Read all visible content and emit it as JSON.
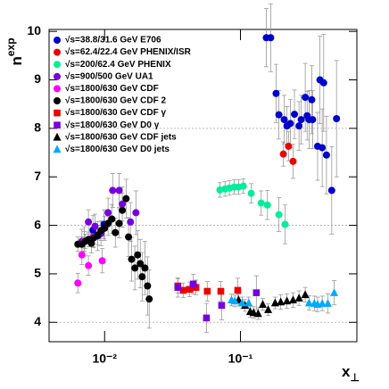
{
  "chart_data": {
    "type": "scatter",
    "xlabel": "x",
    "xlabel_subscript": "⊥",
    "ylabel": "n",
    "ylabel_superscript": "exp",
    "xscale": "log",
    "xlim": [
      0.0039,
      0.72
    ],
    "ylim": [
      3.6,
      10.04
    ],
    "xticks": [
      {
        "value": 0.01,
        "label": "10⁻²"
      },
      {
        "value": 0.1,
        "label": "10⁻¹"
      }
    ],
    "yticks": [
      4,
      5,
      6,
      7,
      8,
      9,
      10
    ],
    "hlines": [
      4,
      6,
      8
    ],
    "legend": "upper left",
    "series": [
      {
        "name": "√s=38.8/31.6 GeV E706",
        "color": "#0000cc",
        "marker": "circle",
        "x": [
          0.155,
          0.167,
          0.183,
          0.192,
          0.21,
          0.22,
          0.233,
          0.25,
          0.27,
          0.28,
          0.3,
          0.31,
          0.32,
          0.335,
          0.34,
          0.37,
          0.385,
          0.4,
          0.41,
          0.43,
          0.47,
          0.51,
          0.0071,
          0.0082,
          0.0089,
          0.0099
        ],
        "values": [
          9.87,
          9.87,
          8.72,
          8.28,
          8.18,
          8.05,
          8.1,
          8.29,
          8.05,
          8.18,
          8.64,
          8.26,
          8.18,
          8.59,
          8.18,
          7.63,
          9.0,
          7.6,
          8.94,
          7.45,
          6.72,
          8.2,
          5.67,
          5.9,
          5.78,
          6.02
        ],
        "errors": [
          0.6,
          0.7,
          0.6,
          0.5,
          0.5,
          0.4,
          0.5,
          0.5,
          0.5,
          0.5,
          0.7,
          0.5,
          0.6,
          0.7,
          0.6,
          0.7,
          0.9,
          0.8,
          1.0,
          0.8,
          0.9,
          1.2,
          0.3,
          0.3,
          0.3,
          0.3
        ]
      },
      {
        "name": "√s=62.4/22.4 GeV PHENIX/ISR",
        "color": "#ee0000",
        "marker": "circle",
        "x": [
          0.207,
          0.226,
          0.244
        ],
        "values": [
          7.47,
          7.63,
          7.32
        ],
        "errors": [
          0.25,
          0.3,
          0.35
        ]
      },
      {
        "name": "√s=200/62.4 GeV PHENIX",
        "color": "#00ee99",
        "marker": "circle",
        "x": [
          0.0706,
          0.077,
          0.083,
          0.09,
          0.097,
          0.105,
          0.12,
          0.142,
          0.158,
          0.192,
          0.213
        ],
        "values": [
          6.73,
          6.75,
          6.77,
          6.79,
          6.79,
          6.81,
          6.66,
          6.46,
          6.42,
          6.22,
          6.02
        ],
        "errors": [
          0.15,
          0.15,
          0.15,
          0.15,
          0.15,
          0.15,
          0.2,
          0.25,
          0.3,
          0.35,
          0.4
        ]
      },
      {
        "name": "√s=900/500 GeV UA1",
        "color": "#7700dd",
        "marker": "circle",
        "x": [
          0.0068,
          0.0076,
          0.0085,
          0.0094,
          0.0106,
          0.01146,
          0.0128,
          0.0135,
          0.0155,
          0.017
        ],
        "values": [
          5.67,
          6.07,
          5.98,
          5.83,
          6.26,
          6.72,
          6.72,
          6.44,
          6.07,
          6.26
        ],
        "errors": [
          0.25,
          0.25,
          0.25,
          0.25,
          0.3,
          0.35,
          0.35,
          0.35,
          0.4,
          0.45
        ]
      },
      {
        "name": "√s=1800/630 GeV CDF",
        "color": "#ff00ff",
        "marker": "circle",
        "x": [
          0.00635,
          0.0068,
          0.0071,
          0.0076,
          0.0082,
          0.0096
        ],
        "values": [
          4.81,
          5.39,
          5.67,
          5.17,
          5.76,
          5.27
        ],
        "errors": [
          0.2,
          0.2,
          0.2,
          0.2,
          0.2,
          0.25
        ]
      },
      {
        "name": "√s=1800/630 GeV CDF 2",
        "color": "#000000",
        "marker": "circle",
        "x": [
          0.00635,
          0.0068,
          0.0072,
          0.0076,
          0.008,
          0.0083,
          0.0089,
          0.0094,
          0.01,
          0.0106,
          0.0113,
          0.012,
          0.0128,
          0.0135,
          0.0144,
          0.015,
          0.0158,
          0.0167,
          0.0175,
          0.0183,
          0.0189,
          0.0198,
          0.0207,
          0.0213
        ],
        "values": [
          5.61,
          5.61,
          5.67,
          5.71,
          5.63,
          5.74,
          5.8,
          5.89,
          5.94,
          6.04,
          6.13,
          5.85,
          6.04,
          6.31,
          6.55,
          5.76,
          5.3,
          5.12,
          5.39,
          5.21,
          4.94,
          5.12,
          4.75,
          4.48
        ],
        "errors": [
          0.15,
          0.15,
          0.15,
          0.15,
          0.2,
          0.2,
          0.2,
          0.2,
          0.25,
          0.25,
          0.3,
          0.3,
          0.3,
          0.35,
          0.4,
          0.4,
          0.45,
          0.45,
          0.5,
          0.5,
          0.5,
          0.55,
          0.6,
          0.6
        ]
      },
      {
        "name": "√s=1800/630 GeV CDF γ",
        "color": "#ee0000",
        "marker": "square",
        "x": [
          0.0346,
          0.0379,
          0.0422,
          0.047,
          0.057,
          0.0717,
          0.0955
        ],
        "values": [
          4.75,
          4.66,
          4.68,
          4.72,
          4.64,
          4.64,
          4.66
        ],
        "errors": [
          0.15,
          0.15,
          0.15,
          0.15,
          0.2,
          0.2,
          0.25
        ]
      },
      {
        "name": "√s=1800/630 GeV D0 γ",
        "color": "#7700dd",
        "marker": "square",
        "x": [
          0.0346,
          0.045,
          0.0562,
          0.0727,
          0.131
        ],
        "values": [
          4.72,
          4.79,
          4.09,
          4.35,
          4.61
        ],
        "errors": [
          0.2,
          0.2,
          0.3,
          0.3,
          0.35
        ]
      },
      {
        "name": "√s=1800/630 GeV CDF jets",
        "color": "#000000",
        "marker": "triangle",
        "x": [
          0.097,
          0.108,
          0.118,
          0.125,
          0.135,
          0.146,
          0.16,
          0.18,
          0.198,
          0.22,
          0.244,
          0.27,
          0.3
        ],
        "values": [
          4.46,
          4.35,
          4.22,
          4.2,
          4.18,
          4.37,
          4.26,
          4.4,
          4.42,
          4.44,
          4.46,
          4.5,
          4.57
        ],
        "errors": [
          0.12,
          0.12,
          0.12,
          0.12,
          0.12,
          0.12,
          0.12,
          0.12,
          0.15,
          0.15,
          0.15,
          0.15,
          0.15
        ]
      },
      {
        "name": "√s=1800/630 GeV D0 jets",
        "color": "#00aaff",
        "marker": "triangle",
        "x": [
          0.086,
          0.091,
          0.103,
          0.115,
          0.32,
          0.35,
          0.37,
          0.4,
          0.44,
          0.49
        ],
        "values": [
          4.46,
          4.44,
          4.4,
          4.4,
          4.4,
          4.39,
          4.37,
          4.39,
          4.39,
          4.61
        ],
        "errors": [
          0.12,
          0.12,
          0.12,
          0.12,
          0.15,
          0.15,
          0.15,
          0.15,
          0.2,
          0.25
        ]
      }
    ]
  }
}
